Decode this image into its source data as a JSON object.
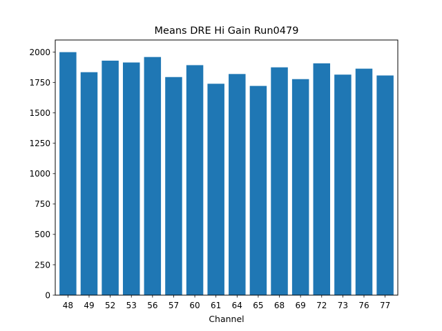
{
  "chart_data": {
    "type": "bar",
    "title": "Means DRE Hi Gain Run0479",
    "xlabel": "Channel",
    "ylabel": "",
    "categories": [
      "48",
      "49",
      "52",
      "53",
      "56",
      "57",
      "60",
      "61",
      "64",
      "65",
      "68",
      "69",
      "72",
      "73",
      "76",
      "77"
    ],
    "values": [
      2000,
      1835,
      1930,
      1915,
      1960,
      1795,
      1893,
      1740,
      1820,
      1722,
      1875,
      1778,
      1908,
      1815,
      1864,
      1808
    ],
    "ylim": [
      0,
      2100
    ],
    "yticks": [
      0,
      250,
      500,
      750,
      1000,
      1250,
      1500,
      1750,
      2000
    ],
    "bar_color": "#1f77b4",
    "grid": false,
    "legend": "none"
  }
}
